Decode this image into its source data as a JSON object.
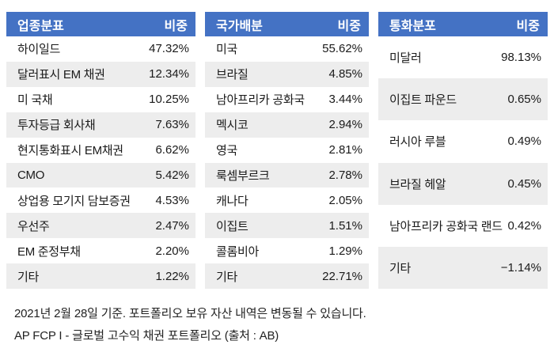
{
  "colors": {
    "header_bg": "#4472C4",
    "header_text": "#FFFFFF",
    "stripe_bg": "#EDEDED",
    "row_bg": "#FFFFFF",
    "text": "#1A1A1A"
  },
  "tables": [
    {
      "header": {
        "label": "업종분표",
        "value": "비중"
      },
      "rows": [
        {
          "label": "하이일드",
          "value": "47.32%"
        },
        {
          "label": "달러표시 EM 채권",
          "value": "12.34%"
        },
        {
          "label": "미 국채",
          "value": "10.25%"
        },
        {
          "label": "투자등급 회사채",
          "value": "7.63%"
        },
        {
          "label": "현지통화표시 EM채권",
          "value": "6.62%"
        },
        {
          "label": "CMO",
          "value": "5.42%"
        },
        {
          "label": "상업용 모기지 담보증권",
          "value": "4.53%"
        },
        {
          "label": "우선주",
          "value": "2.47%"
        },
        {
          "label": "EM 준정부채",
          "value": "2.20%"
        },
        {
          "label": "기타",
          "value": "1.22%"
        }
      ]
    },
    {
      "header": {
        "label": "국가배분",
        "value": "비중"
      },
      "rows": [
        {
          "label": "미국",
          "value": "55.62%"
        },
        {
          "label": "브라질",
          "value": "4.85%"
        },
        {
          "label": "남아프리카 공화국",
          "value": "3.44%"
        },
        {
          "label": "멕시코",
          "value": "2.94%"
        },
        {
          "label": "영국",
          "value": "2.81%"
        },
        {
          "label": "룩셈부르크",
          "value": "2.78%"
        },
        {
          "label": "캐나다",
          "value": "2.05%"
        },
        {
          "label": "이집트",
          "value": "1.51%"
        },
        {
          "label": "콜롬비아",
          "value": "1.29%"
        },
        {
          "label": "기타",
          "value": "22.71%"
        }
      ]
    },
    {
      "header": {
        "label": "통화분포",
        "value": "비중"
      },
      "rows": [
        {
          "label": "미달러",
          "value": "98.13%"
        },
        {
          "label": "이집트 파운드",
          "value": "0.65%"
        },
        {
          "label": "러시아 루블",
          "value": "0.49%"
        },
        {
          "label": "브라질 헤알",
          "value": "0.45%"
        },
        {
          "label": "남아프리카 공화국 랜드",
          "value": "0.42%"
        },
        {
          "label": "기타",
          "value": "−1.14%"
        }
      ]
    }
  ],
  "footer": {
    "line1": "2021년 2월 28일 기준. 포트폴리오 보유 자산 내역은 변동될 수 있습니다.",
    "line2": "AP FCP I  - 글로벌 고수익 채권 포트폴리오 (출처 : AB)"
  }
}
